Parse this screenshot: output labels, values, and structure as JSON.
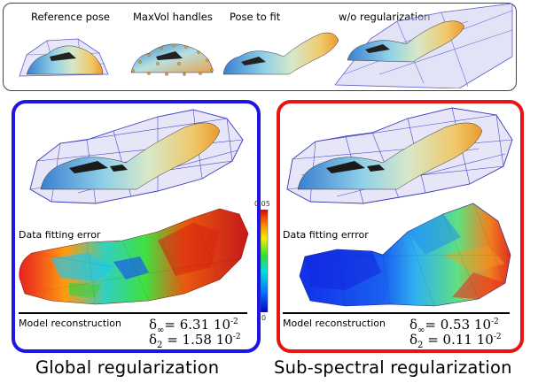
{
  "top_panel": {
    "labels": [
      "Reference pose",
      "MaxVol handles",
      "Pose to fit",
      "w/o regularization"
    ]
  },
  "colorbar": {
    "max_label": "0.05",
    "min_label": "0"
  },
  "left_panel": {
    "title": "Global regularization",
    "error_label": "Data fitting error",
    "reconstruction_label": "Model reconstruction",
    "delta_inf_value": "6.31 10",
    "delta_2_value": "1.58 10",
    "exponent": "-2",
    "border_color": "#1c16e0"
  },
  "right_panel": {
    "title": "Sub-spectral regularization",
    "error_label": "Data fitting errror",
    "reconstruction_label": "Model reconstruction",
    "delta_inf_value": "0.53 10",
    "delta_2_value": "0.11 10",
    "exponent": "-2",
    "border_color": "#e81414"
  },
  "symbols": {
    "delta": "δ",
    "inf": "∞",
    "two": "2",
    "eq": "="
  }
}
